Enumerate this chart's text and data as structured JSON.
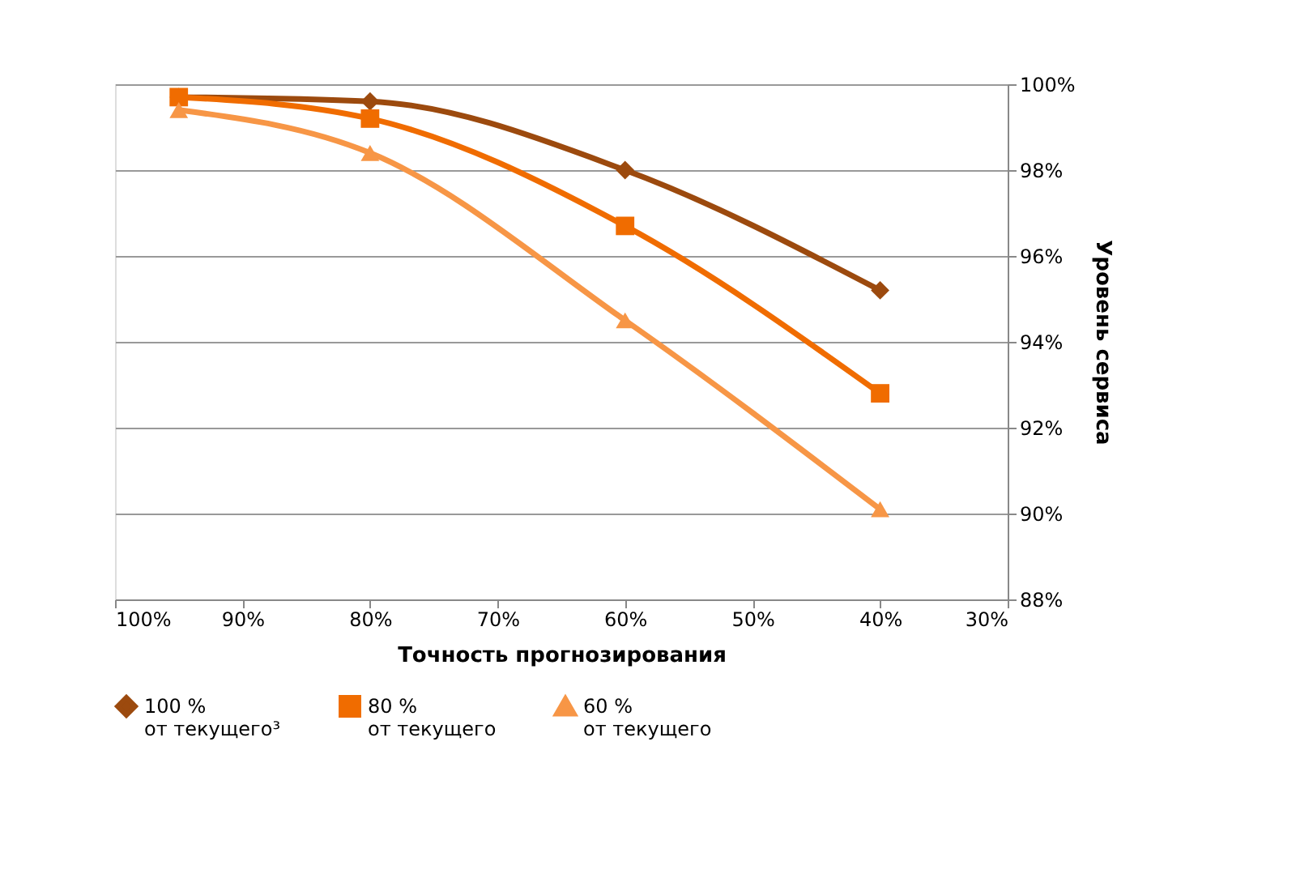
{
  "chart_data": {
    "type": "line",
    "xlabel": "Точность прогнозирования",
    "ylabel": "Уровень сервиса",
    "x": [
      95,
      80,
      60,
      40
    ],
    "series": [
      {
        "name": "100 %\nот текущего³",
        "color": "#9c4a0e",
        "marker": "diamond",
        "values": [
          99.7,
          99.6,
          98.0,
          95.2
        ]
      },
      {
        "name": "80 %\nот текущего",
        "color": "#f06c00",
        "marker": "square",
        "values": [
          99.7,
          99.2,
          96.7,
          92.8
        ]
      },
      {
        "name": "60 %\nот текущего",
        "color": "#f79646",
        "marker": "triangle",
        "values": [
          99.4,
          98.4,
          94.5,
          90.1
        ]
      }
    ],
    "xlim": [
      100,
      30
    ],
    "xticks": [
      {
        "value": 100,
        "label": "100%"
      },
      {
        "value": 90,
        "label": "90%"
      },
      {
        "value": 80,
        "label": "80%"
      },
      {
        "value": 70,
        "label": "70%"
      },
      {
        "value": 60,
        "label": "60%"
      },
      {
        "value": 50,
        "label": "50%"
      },
      {
        "value": 40,
        "label": "40%"
      },
      {
        "value": 30,
        "label": "30%"
      }
    ],
    "ylim": [
      88,
      100
    ],
    "yticks": [
      {
        "value": 88,
        "label": "88%"
      },
      {
        "value": 90,
        "label": "90%"
      },
      {
        "value": 92,
        "label": "92%"
      },
      {
        "value": 94,
        "label": "94%"
      },
      {
        "value": 96,
        "label": "96%"
      },
      {
        "value": 98,
        "label": "98%"
      },
      {
        "value": 100,
        "label": "100%"
      }
    ],
    "grid": "y",
    "legend": "bottom",
    "line_style": "solid"
  }
}
